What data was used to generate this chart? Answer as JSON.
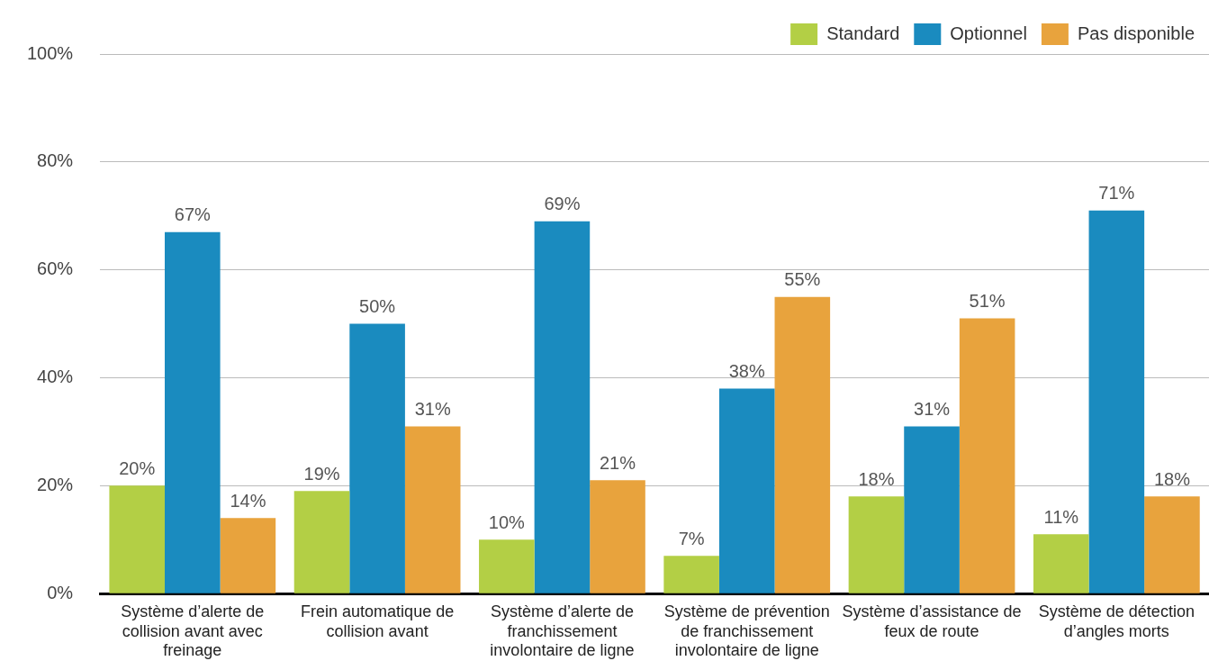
{
  "chart_data": {
    "type": "bar",
    "categories": [
      "Système d’alerte de collision avant avec freinage",
      "Frein automatique de collision avant",
      "Système d’alerte de franchissement involontaire de ligne",
      "Système de prévention de franchissement involontaire de ligne",
      "Système d’assistance de feux de route",
      "Système de détection d’angles morts"
    ],
    "series": [
      {
        "name": "Standard",
        "color": "#b3cf45",
        "values": [
          20,
          19,
          10,
          7,
          18,
          11
        ],
        "value_labels": [
          "20%",
          "19%",
          "10%",
          "7%",
          "18%",
          "11%"
        ]
      },
      {
        "name": "Optionnel",
        "color": "#1a8bbf",
        "values": [
          67,
          50,
          69,
          38,
          31,
          71
        ],
        "value_labels": [
          "67%",
          "50%",
          "69%",
          "38%",
          "31%",
          "71%"
        ]
      },
      {
        "name": "Pas disponible",
        "color": "#e8a33d",
        "values": [
          14,
          31,
          21,
          55,
          51,
          18
        ],
        "value_labels": [
          "14%",
          "31%",
          "21%",
          "55%",
          "51%",
          "18%"
        ]
      }
    ],
    "ylim": [
      0,
      100
    ],
    "yticks": [
      {
        "value": 0,
        "label": "0%"
      },
      {
        "value": 20,
        "label": "20%"
      },
      {
        "value": 40,
        "label": "40%"
      },
      {
        "value": 60,
        "label": "60%"
      },
      {
        "value": 80,
        "label": "80%"
      },
      {
        "value": 100,
        "label": "100%"
      }
    ],
    "grid": "y",
    "legend": "top right"
  }
}
